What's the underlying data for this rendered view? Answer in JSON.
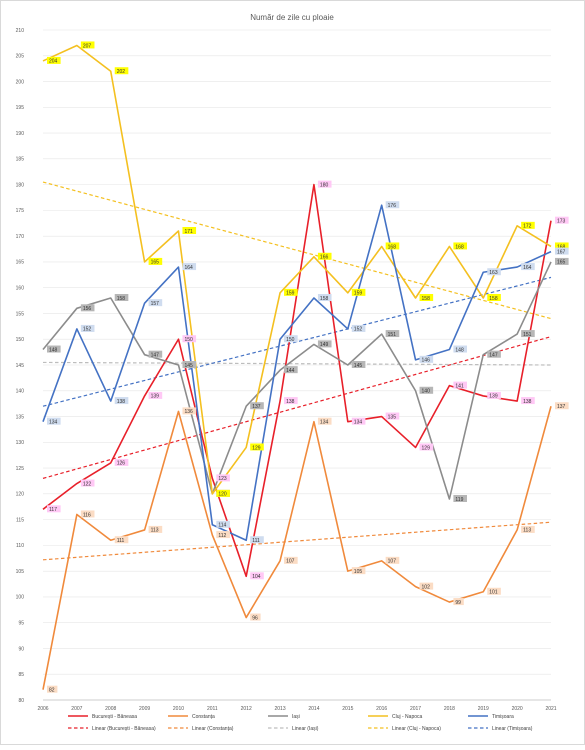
{
  "chart_data": {
    "type": "line",
    "title": "Număr de zile cu ploaie",
    "xlabel": "",
    "ylabel": "",
    "x": [
      "2006",
      "2007",
      "2008",
      "2009",
      "2010",
      "2011",
      "2012",
      "2013",
      "2014",
      "2015",
      "2016",
      "2017",
      "2018",
      "2019",
      "2020",
      "2021"
    ],
    "ylim": [
      80,
      210
    ],
    "yticks": [
      80,
      85,
      90,
      95,
      100,
      105,
      110,
      115,
      120,
      125,
      130,
      135,
      140,
      145,
      150,
      155,
      160,
      165,
      170,
      175,
      180,
      185,
      190,
      195,
      200,
      205,
      210
    ],
    "grid": true,
    "legend_position": "bottom",
    "series": [
      {
        "name": "București - Băneasa",
        "color": "#e8202a",
        "label_color": "#ffc8f5",
        "values": [
          117,
          122,
          126,
          139,
          150,
          123,
          104,
          138,
          180,
          134,
          135,
          129,
          141,
          139,
          138,
          173
        ]
      },
      {
        "name": "Constanța",
        "color": "#f08a3c",
        "label_color": "#fbdcc4",
        "values": [
          82,
          116,
          111,
          113,
          136,
          112,
          96,
          107,
          134,
          105,
          107,
          102,
          99,
          101,
          113,
          137
        ]
      },
      {
        "name": "Iași",
        "color": "#8c8c8c",
        "label_color": "#b6b6b6",
        "values": [
          148,
          156,
          158,
          147,
          145,
          120,
          137,
          144,
          149,
          145,
          151,
          140,
          119,
          147,
          151,
          165
        ]
      },
      {
        "name": "Cluj - Napoca",
        "color": "#f4c020",
        "label_color": "#ffff00",
        "values": [
          204,
          207,
          202,
          165,
          171,
          120,
          129,
          159,
          166,
          159,
          168,
          158,
          168,
          158,
          172,
          168
        ]
      },
      {
        "name": "Timișoara",
        "color": "#4472c4",
        "label_color": "#cfdcef",
        "values": [
          134,
          152,
          138,
          157,
          164,
          114,
          111,
          150,
          158,
          152,
          176,
          146,
          148,
          163,
          164,
          167
        ]
      }
    ],
    "trendlines": [
      {
        "name": "Linear (București - Băneasa)",
        "color": "#e8202a",
        "start": 123,
        "end": 150.5
      },
      {
        "name": "Linear (Constanța)",
        "color": "#f08a3c",
        "start": 107.2,
        "end": 114.5
      },
      {
        "name": "Linear (Iași)",
        "color": "#bdbdbd",
        "start": 145.5,
        "end": 145
      },
      {
        "name": "Linear (Cluj - Napoca)",
        "color": "#f4c020",
        "start": 180.5,
        "end": 154
      },
      {
        "name": "Linear (Timișoara)",
        "color": "#4472c4",
        "start": 137,
        "end": 162
      }
    ]
  }
}
